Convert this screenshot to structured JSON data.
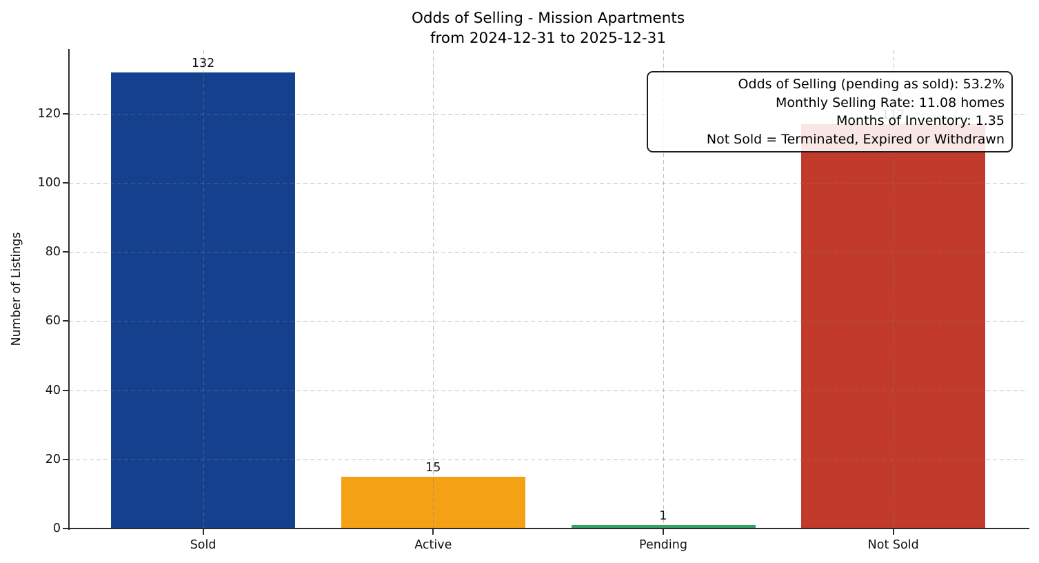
{
  "chart_data": {
    "type": "bar",
    "title": "Odds of Selling - Mission Apartments",
    "subtitle": "from 2024-12-31 to 2025-12-31",
    "ylabel": "Number of Listings",
    "categories": [
      "Sold",
      "Active",
      "Pending",
      "Not Sold"
    ],
    "values": [
      132,
      15,
      1,
      117
    ],
    "value_labels": [
      "132",
      "15",
      "1",
      "117"
    ],
    "bar_colors": [
      "#14408e",
      "#f5a115",
      "#34a465",
      "#c23a2b"
    ],
    "yticks": [
      0,
      20,
      40,
      60,
      80,
      100,
      120
    ],
    "ylim": [
      0,
      138.6
    ],
    "grid": {
      "style": "dashed",
      "axes": "both",
      "over_bars": true
    },
    "legend_position": "none",
    "annotation_box": {
      "lines": [
        "Odds of Selling (pending as sold): 53.2%",
        "Monthly Selling Rate: 11.08 homes",
        "Months of Inventory: 1.35",
        "Not Sold = Terminated, Expired or Withdrawn"
      ]
    }
  }
}
